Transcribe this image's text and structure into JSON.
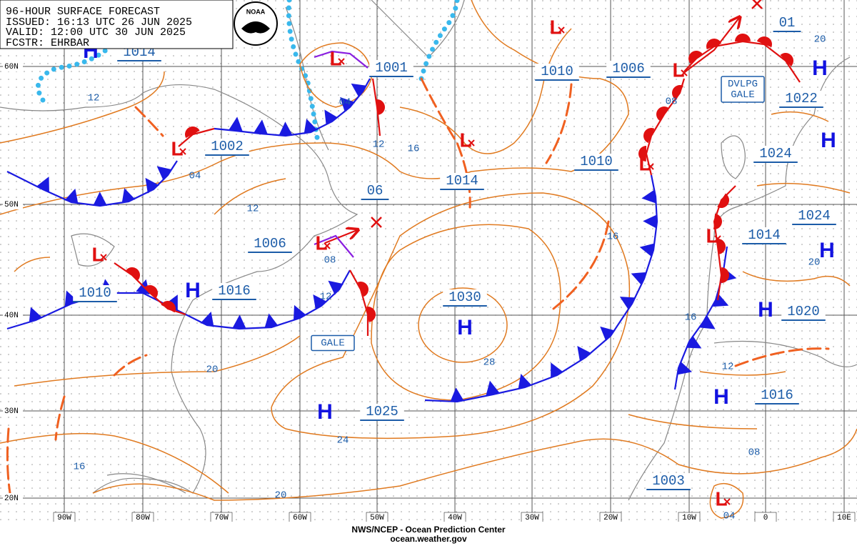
{
  "header": {
    "lines": [
      "96-HOUR SURFACE FORECAST",
      "ISSUED: 16:13 UTC 26 JUN 2025",
      "VALID:  12:00 UTC 30 JUN 2025",
      "FCSTR: EHRBAR"
    ],
    "logo": "NOAA"
  },
  "grid": {
    "latitudes": [
      "60N",
      "50N",
      "40N",
      "30N",
      "20N"
    ],
    "longitudes": [
      "90W",
      "80W",
      "70W",
      "60W",
      "50W",
      "40W",
      "30W",
      "20W",
      "10W",
      "0",
      "10E"
    ]
  },
  "pressure_labels": [
    "1014",
    "1001",
    "1010",
    "1006",
    "01",
    "1022",
    "1002",
    "1024",
    "1010",
    "1014",
    "06",
    "1024",
    "1014",
    "1006",
    "1010",
    "1016",
    "1030",
    "1020",
    "1025",
    "1016",
    "1003"
  ],
  "high_symbols": [
    "H",
    "H",
    "H",
    "H",
    "H",
    "H",
    "H",
    "H",
    "H"
  ],
  "low_symbols": [
    "L",
    "L",
    "L",
    "L",
    "L",
    "L",
    "L",
    "L",
    "L",
    "L"
  ],
  "isobar_labels": [
    "12",
    "04",
    "08",
    "20",
    "12",
    "16",
    "04",
    "12",
    "16",
    "08",
    "20",
    "12",
    "16",
    "28",
    "20",
    "12",
    "24",
    "08",
    "16",
    "20",
    "04"
  ],
  "warnings": [
    {
      "lines": [
        "DVLPG",
        "GALE"
      ]
    },
    {
      "lines": [
        "GALE"
      ]
    }
  ],
  "footer": {
    "agency": "NWS/NCEP - Ocean Prediction Center",
    "url": "ocean.weather.gov"
  }
}
